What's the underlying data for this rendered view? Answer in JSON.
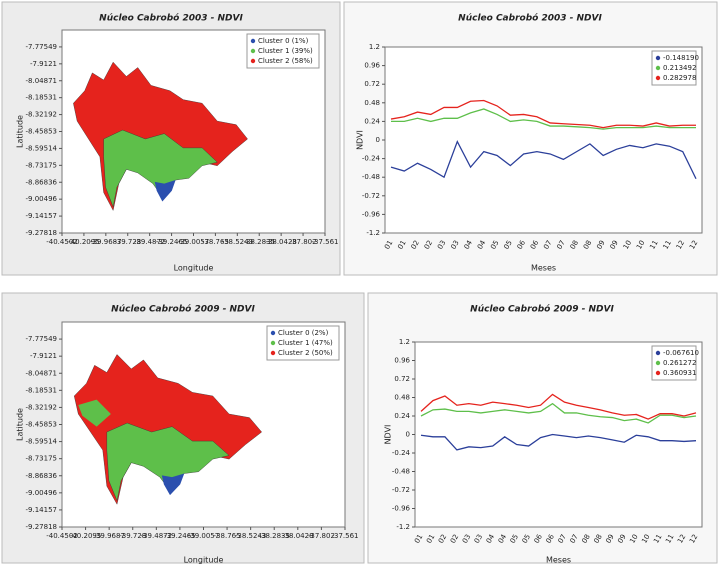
{
  "chart_data": [
    {
      "type": "map",
      "title": "Núcleo Cabrobó 2003 - NDVI",
      "xlabel": "Longitude",
      "ylabel": "Latitude",
      "series": [
        {
          "name": "Cluster 0 (1%)",
          "color": "#2b4fae"
        },
        {
          "name": "Cluster 1 (39%)",
          "color": "#5ebf4a"
        },
        {
          "name": "Cluster 2 (58%)",
          "color": "#e5231d"
        }
      ],
      "xlim": [
        -40.4502,
        -37.561
      ],
      "xticks": [
        -40.4502,
        -40.2095,
        -39.9687,
        -39.728,
        -39.4872,
        -39.2465,
        -39.0057,
        -38.765,
        -38.5243,
        -38.2835,
        -38.0428,
        -37.802,
        -37.561
      ],
      "ylim": [
        -9.27818,
        -7.63888
      ],
      "yticks": [
        -7.77549,
        -7.9121,
        -8.04871,
        -8.18531,
        -8.32192,
        -8.45853,
        -8.59514,
        -8.73175,
        -8.86836,
        -9.00496,
        -9.14157,
        -9.27818
      ]
    },
    {
      "type": "line",
      "title": "Núcleo Cabrobó 2003 - NDVI",
      "xlabel": "Meses",
      "ylabel": "NDVI",
      "categories": [
        "01",
        "01",
        "02",
        "02",
        "03",
        "03",
        "04",
        "04",
        "05",
        "05",
        "06",
        "06",
        "07",
        "07",
        "08",
        "08",
        "09",
        "09",
        "10",
        "10",
        "11",
        "11",
        "12",
        "12"
      ],
      "series": [
        {
          "name": "-0.148190",
          "color": "#2b3f9a",
          "values": [
            -0.35,
            -0.4,
            -0.3,
            -0.38,
            -0.48,
            -0.02,
            -0.35,
            -0.15,
            -0.2,
            -0.33,
            -0.18,
            -0.15,
            -0.18,
            -0.25,
            -0.15,
            -0.05,
            -0.2,
            -0.12,
            -0.07,
            -0.1,
            -0.05,
            -0.08,
            -0.15,
            -0.5
          ]
        },
        {
          "name": "0.213492",
          "color": "#5ebf4a",
          "values": [
            0.24,
            0.24,
            0.28,
            0.24,
            0.28,
            0.28,
            0.35,
            0.4,
            0.33,
            0.24,
            0.26,
            0.24,
            0.18,
            0.18,
            0.17,
            0.16,
            0.14,
            0.16,
            0.16,
            0.16,
            0.18,
            0.16,
            0.16,
            0.16
          ]
        },
        {
          "name": "0.282978",
          "color": "#e5231d",
          "values": [
            0.27,
            0.3,
            0.36,
            0.33,
            0.42,
            0.42,
            0.5,
            0.51,
            0.44,
            0.32,
            0.33,
            0.3,
            0.22,
            0.21,
            0.2,
            0.19,
            0.16,
            0.19,
            0.19,
            0.18,
            0.22,
            0.18,
            0.19,
            0.19
          ]
        }
      ],
      "ylim": [
        -1.2,
        1.2
      ],
      "yticks": [
        1.2,
        0.96,
        0.72,
        0.48,
        0.24,
        0,
        -0.24,
        -0.48,
        -0.72,
        -0.96,
        -1.2
      ]
    },
    {
      "type": "map",
      "title": "Núcleo Cabrobó 2009 - NDVI",
      "xlabel": "Longitude",
      "ylabel": "Latitude",
      "series": [
        {
          "name": "Cluster 0 (2%)",
          "color": "#2b4fae"
        },
        {
          "name": "Cluster 1 (47%)",
          "color": "#5ebf4a"
        },
        {
          "name": "Cluster 2 (50%)",
          "color": "#e5231d"
        }
      ],
      "xlim": [
        -40.4502,
        -37.561
      ],
      "xticks": [
        -40.4502,
        -40.2095,
        -39.9687,
        -39.728,
        -39.4872,
        -39.2465,
        -39.0057,
        -38.765,
        -38.5243,
        -38.2835,
        -38.0428,
        -37.802,
        -37.561
      ],
      "ylim": [
        -9.27818,
        -7.63888
      ],
      "yticks": [
        -7.77549,
        -7.9121,
        -8.04871,
        -8.18531,
        -8.32192,
        -8.45853,
        -8.59514,
        -8.73175,
        -8.86836,
        -9.00496,
        -9.14157,
        -9.27818
      ]
    },
    {
      "type": "line",
      "title": "Núcleo Cabrobó 2009 - NDVI",
      "xlabel": "Meses",
      "ylabel": "NDVI",
      "categories": [
        "01",
        "01",
        "02",
        "02",
        "03",
        "03",
        "04",
        "04",
        "05",
        "05",
        "06",
        "06",
        "07",
        "07",
        "08",
        "08",
        "09",
        "09",
        "10",
        "10",
        "11",
        "11",
        "12",
        "12"
      ],
      "series": [
        {
          "name": "-0.067610",
          "color": "#2b3f9a",
          "values": [
            -0.01,
            -0.03,
            -0.03,
            -0.2,
            -0.16,
            -0.17,
            -0.15,
            -0.03,
            -0.13,
            -0.15,
            -0.04,
            0.0,
            -0.02,
            -0.04,
            -0.02,
            -0.04,
            -0.07,
            -0.1,
            -0.01,
            -0.03,
            -0.08,
            -0.08,
            -0.09,
            -0.08
          ]
        },
        {
          "name": "0.261272",
          "color": "#5ebf4a",
          "values": [
            0.24,
            0.32,
            0.33,
            0.3,
            0.3,
            0.28,
            0.3,
            0.32,
            0.3,
            0.28,
            0.3,
            0.4,
            0.28,
            0.28,
            0.25,
            0.23,
            0.22,
            0.18,
            0.2,
            0.15,
            0.25,
            0.25,
            0.22,
            0.24
          ]
        },
        {
          "name": "0.360931",
          "color": "#e5231d",
          "values": [
            0.3,
            0.44,
            0.5,
            0.38,
            0.4,
            0.38,
            0.42,
            0.4,
            0.38,
            0.35,
            0.38,
            0.52,
            0.42,
            0.38,
            0.35,
            0.32,
            0.28,
            0.25,
            0.26,
            0.2,
            0.27,
            0.27,
            0.24,
            0.28
          ]
        }
      ],
      "ylim": [
        -1.2,
        1.2
      ],
      "yticks": [
        1.2,
        0.96,
        0.72,
        0.48,
        0.24,
        0,
        -0.24,
        -0.48,
        -0.72,
        -0.96,
        -1.2
      ]
    }
  ]
}
